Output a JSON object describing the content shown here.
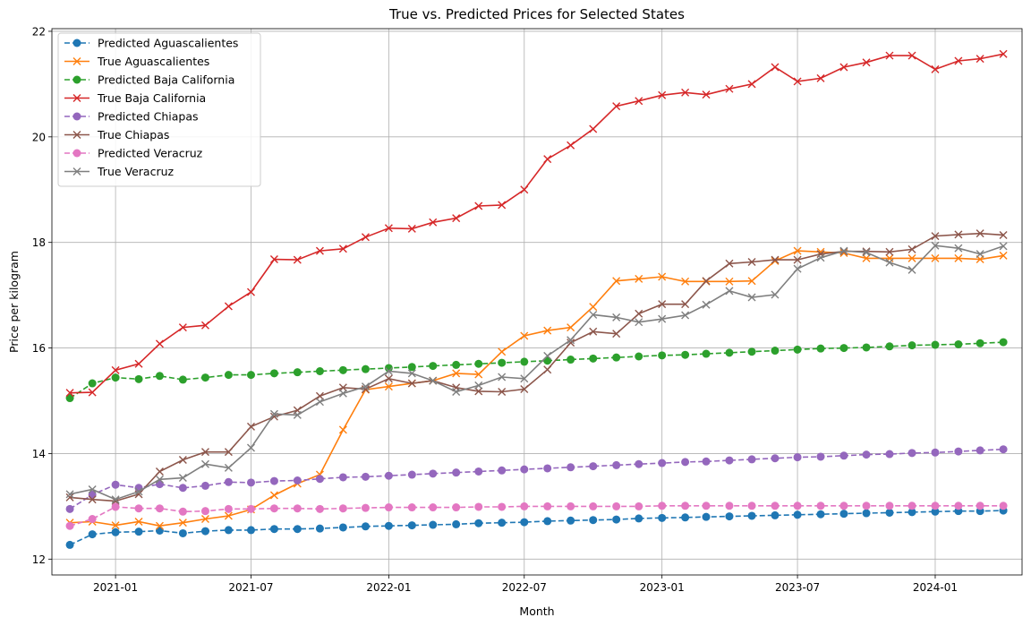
{
  "chart_data": {
    "type": "line",
    "title": "True vs. Predicted Prices for Selected States",
    "xlabel": "Month",
    "ylabel": "Price per kilogram",
    "x_start": "2020-11",
    "x_end": "2024-04",
    "xlim": [
      "2020-10-08",
      "2024-04-26"
    ],
    "ylim": [
      11.7,
      22.05
    ],
    "x_ticks": [
      "2021-01",
      "2021-07",
      "2022-01",
      "2022-07",
      "2023-01",
      "2023-07",
      "2024-01"
    ],
    "y_ticks": [
      12,
      14,
      16,
      18,
      20,
      22
    ],
    "grid": true,
    "legend_position": "top-left",
    "series": [
      {
        "name": "Predicted Aguascalientes",
        "color": "#1f77b4",
        "dashed": true,
        "marker": "circle",
        "values": [
          12.27,
          12.47,
          12.51,
          12.52,
          12.54,
          12.49,
          12.53,
          12.55,
          12.55,
          12.57,
          12.57,
          12.58,
          12.6,
          12.62,
          12.63,
          12.64,
          12.65,
          12.66,
          12.68,
          12.69,
          12.7,
          12.72,
          12.73,
          12.74,
          12.75,
          12.77,
          12.78,
          12.79,
          12.8,
          12.81,
          12.82,
          12.83,
          12.84,
          12.85,
          12.86,
          12.87,
          12.88,
          12.89,
          12.9,
          12.91,
          12.91,
          12.92
        ]
      },
      {
        "name": "True Aguascalientes",
        "color": "#ff7f0e",
        "dashed": false,
        "marker": "x",
        "values": [
          12.69,
          12.71,
          12.64,
          12.71,
          12.63,
          12.69,
          12.76,
          12.82,
          12.94,
          13.21,
          13.43,
          13.6,
          14.45,
          15.21,
          15.27,
          15.33,
          15.38,
          15.52,
          15.5,
          15.93,
          16.23,
          16.33,
          16.39,
          16.78,
          17.27,
          17.31,
          17.35,
          17.26,
          17.26,
          17.26,
          17.27,
          17.65,
          17.84,
          17.82,
          17.8,
          17.7,
          17.7,
          17.7,
          17.7,
          17.7,
          17.68,
          17.75
        ]
      },
      {
        "name": "Predicted Baja California",
        "color": "#2ca02c",
        "dashed": true,
        "marker": "circle",
        "values": [
          15.05,
          15.33,
          15.44,
          15.41,
          15.47,
          15.4,
          15.44,
          15.49,
          15.49,
          15.52,
          15.54,
          15.56,
          15.58,
          15.6,
          15.62,
          15.64,
          15.66,
          15.68,
          15.7,
          15.72,
          15.74,
          15.76,
          15.78,
          15.8,
          15.82,
          15.84,
          15.86,
          15.87,
          15.89,
          15.91,
          15.93,
          15.95,
          15.97,
          15.99,
          16.0,
          16.01,
          16.03,
          16.05,
          16.06,
          16.07,
          16.09,
          16.11
        ]
      },
      {
        "name": "True Baja California",
        "color": "#d62728",
        "dashed": false,
        "marker": "x",
        "values": [
          15.15,
          15.16,
          15.58,
          15.7,
          16.08,
          16.39,
          16.43,
          16.79,
          17.06,
          17.68,
          17.67,
          17.84,
          17.88,
          18.1,
          18.27,
          18.26,
          18.38,
          18.46,
          18.69,
          18.71,
          19.0,
          19.58,
          19.84,
          20.15,
          20.58,
          20.68,
          20.79,
          20.84,
          20.8,
          20.91,
          21.0,
          21.32,
          21.05,
          21.11,
          21.32,
          21.41,
          21.54,
          21.54,
          21.28,
          21.44,
          21.48,
          21.57
        ]
      },
      {
        "name": "Predicted Chiapas",
        "color": "#9467bd",
        "dashed": true,
        "marker": "circle",
        "values": [
          12.95,
          13.22,
          13.41,
          13.35,
          13.42,
          13.35,
          13.39,
          13.46,
          13.45,
          13.48,
          13.49,
          13.52,
          13.55,
          13.56,
          13.58,
          13.6,
          13.62,
          13.64,
          13.66,
          13.68,
          13.7,
          13.72,
          13.74,
          13.76,
          13.78,
          13.8,
          13.82,
          13.84,
          13.85,
          13.87,
          13.89,
          13.91,
          13.93,
          13.94,
          13.96,
          13.98,
          13.99,
          14.01,
          14.02,
          14.04,
          14.06,
          14.08
        ]
      },
      {
        "name": "True Chiapas",
        "color": "#8c564b",
        "dashed": false,
        "marker": "x",
        "values": [
          13.17,
          13.13,
          13.1,
          13.23,
          13.66,
          13.88,
          14.03,
          14.03,
          14.51,
          14.7,
          14.82,
          15.09,
          15.25,
          15.22,
          15.42,
          15.33,
          15.38,
          15.25,
          15.18,
          15.17,
          15.22,
          15.59,
          16.1,
          16.31,
          16.27,
          16.65,
          16.83,
          16.83,
          17.27,
          17.6,
          17.63,
          17.67,
          17.67,
          17.78,
          17.83,
          17.83,
          17.82,
          17.87,
          18.12,
          18.15,
          18.17,
          18.14
        ]
      },
      {
        "name": "Predicted Veracruz",
        "color": "#e377c2",
        "dashed": true,
        "marker": "circle",
        "values": [
          12.63,
          12.76,
          12.99,
          12.96,
          12.96,
          12.9,
          12.91,
          12.95,
          12.95,
          12.96,
          12.96,
          12.95,
          12.96,
          12.97,
          12.98,
          12.98,
          12.98,
          12.98,
          12.99,
          12.99,
          13.0,
          13.0,
          13.0,
          13.0,
          13.0,
          13.0,
          13.01,
          13.01,
          13.01,
          13.01,
          13.01,
          13.01,
          13.01,
          13.01,
          13.01,
          13.01,
          13.01,
          13.01,
          13.01,
          13.01,
          13.01,
          13.01
        ]
      },
      {
        "name": "True Veracruz",
        "color": "#7f7f7f",
        "dashed": false,
        "marker": "x",
        "values": [
          13.23,
          13.32,
          13.13,
          13.28,
          13.51,
          13.54,
          13.8,
          13.73,
          14.11,
          14.75,
          14.73,
          14.98,
          15.14,
          15.27,
          15.56,
          15.52,
          15.38,
          15.17,
          15.29,
          15.45,
          15.42,
          15.85,
          16.15,
          16.63,
          16.58,
          16.49,
          16.55,
          16.62,
          16.82,
          17.08,
          16.96,
          17.01,
          17.5,
          17.71,
          17.84,
          17.81,
          17.62,
          17.48,
          17.94,
          17.89,
          17.78,
          17.93
        ]
      }
    ]
  }
}
